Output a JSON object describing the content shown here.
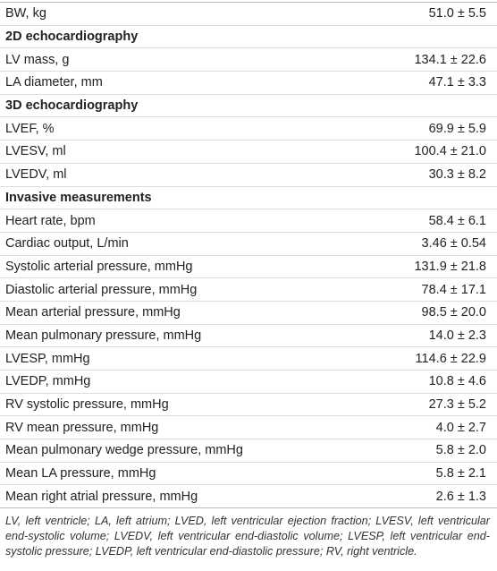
{
  "table": {
    "rows": [
      [
        "BW, kg",
        "51.0 ± 5.5"
      ],
      [
        "2D echocardiography"
      ],
      [
        "LV mass, g",
        "134.1 ± 22.6"
      ],
      [
        "LA diameter, mm",
        "47.1 ± 3.3"
      ],
      [
        "3D echocardiography"
      ],
      [
        "LVEF, %",
        "69.9 ± 5.9"
      ],
      [
        "LVESV, ml",
        "100.4 ± 21.0"
      ],
      [
        "LVEDV, ml",
        "30.3 ± 8.2"
      ],
      [
        "Invasive measurements"
      ],
      [
        "Heart rate, bpm",
        "58.4 ± 6.1"
      ],
      [
        "Cardiac output, L/min",
        "3.46 ± 0.54"
      ],
      [
        "Systolic arterial pressure, mmHg",
        "131.9 ± 21.8"
      ],
      [
        "Diastolic arterial pressure, mmHg",
        "78.4 ± 17.1"
      ],
      [
        "Mean arterial pressure, mmHg",
        "98.5 ± 20.0"
      ],
      [
        "Mean pulmonary pressure, mmHg",
        "14.0 ± 2.3"
      ],
      [
        "LVESP, mmHg",
        "114.6 ± 22.9"
      ],
      [
        "LVEDP, mmHg",
        "10.8 ± 4.6"
      ],
      [
        "RV systolic pressure, mmHg",
        "27.3 ± 5.2"
      ],
      [
        "RV mean pressure, mmHg",
        "4.0 ± 2.7"
      ],
      [
        "Mean pulmonary wedge pressure, mmHg",
        "5.8 ± 2.0"
      ],
      [
        "Mean LA pressure, mmHg",
        "5.8 ± 2.1"
      ],
      [
        "Mean right atrial pressure, mmHg",
        "2.6 ± 1.3"
      ]
    ],
    "footnote": "LV, left ventricle; LA, left atrium; LVED, left ventricular ejection fraction; LVESV, left ventricular end-systolic volume; LVEDV, left ventricular end-diastolic volume; LVESP, left ventricular end-systolic pressure; LVEDP, left ventricular end-diastolic pressure; RV, right ventricle."
  }
}
